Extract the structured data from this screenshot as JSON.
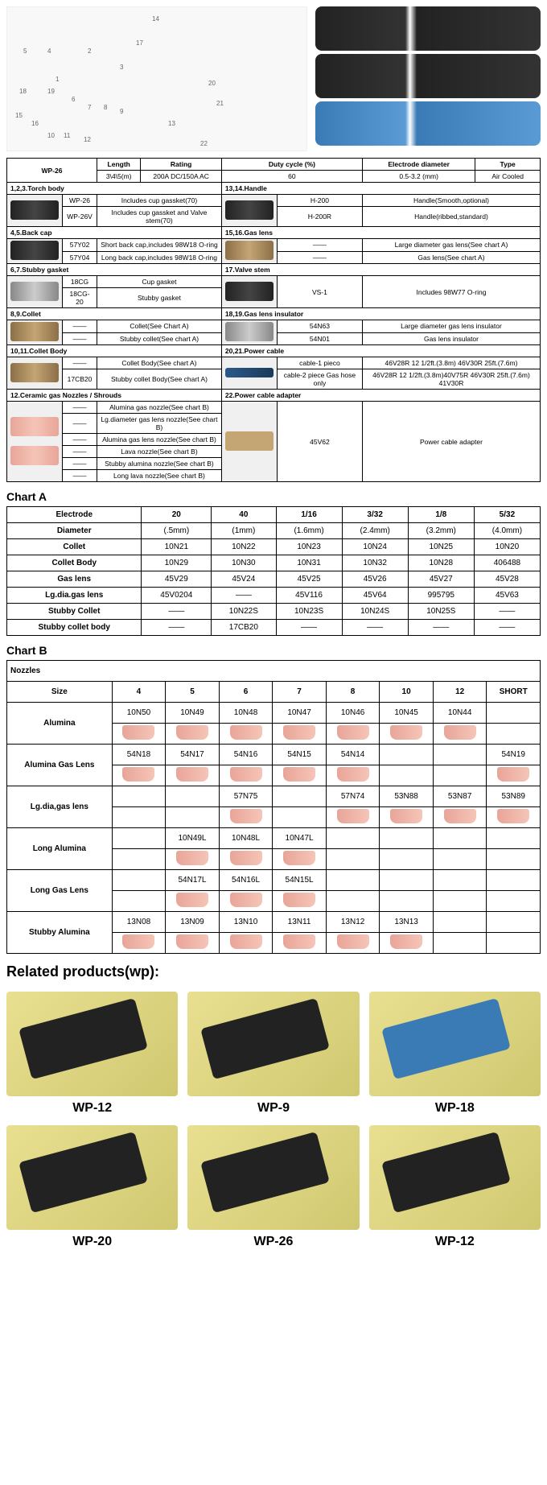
{
  "mainSpec": {
    "headerRow1": [
      "WP-26",
      "Length",
      "Rating",
      "Duty cycle (%)",
      "Electrode diameter",
      "Type"
    ],
    "headerRow2": [
      "3\\4\\5(m)",
      "200A DC/150A AC",
      "60",
      "0.5-3.2 (mm)",
      "Air Cooled"
    ],
    "sections": {
      "torchBody": {
        "title": "1,2,3.Torch body",
        "rows": [
          {
            "code": "WP-26",
            "desc": "Includes cup gassket(70)"
          },
          {
            "code": "WP-26V",
            "desc": "Includes cup gassket and Valve stem(70)"
          }
        ]
      },
      "handle": {
        "title": "13,14.Handle",
        "rows": [
          {
            "code": "H-200",
            "desc": "Handle(Smooth,optional)"
          },
          {
            "code": "H-200R",
            "desc": "Handle(ribbed,standard)"
          }
        ]
      },
      "backCap": {
        "title": "4,5.Back cap",
        "rows": [
          {
            "code": "57Y02",
            "desc": "Short back cap,includes 98W18 O-ring"
          },
          {
            "code": "57Y04",
            "desc": "Long back cap,includes 98W18 O-ring"
          }
        ]
      },
      "gasLens": {
        "title": "15,16.Gas lens",
        "rows": [
          {
            "code": "——",
            "desc": "Large diameter gas lens(See chart A)"
          },
          {
            "code": "——",
            "desc": "Gas lens(See chart A)"
          }
        ]
      },
      "stubbyGasket": {
        "title": "6,7.Stubby gasket",
        "rows": [
          {
            "code": "18CG",
            "desc": "Cup gasket"
          },
          {
            "code": "18CG-20",
            "desc": "Stubby gasket"
          }
        ]
      },
      "valveStem": {
        "title": "17.Valve stem",
        "rows": [
          {
            "code": "VS-1",
            "desc": "Includes 98W77 O-ring"
          }
        ]
      },
      "collet": {
        "title": "8,9.Collet",
        "rows": [
          {
            "code": "——",
            "desc": "Collet(See Chart A)"
          },
          {
            "code": "——",
            "desc": "Stubby collet(See chart A)"
          }
        ]
      },
      "gasLensInsulator": {
        "title": "18,19.Gas lens insulator",
        "rows": [
          {
            "code": "54N63",
            "desc": "Large diameter gas lens insulator"
          },
          {
            "code": "54N01",
            "desc": "Gas lens insulator"
          }
        ]
      },
      "colletBody": {
        "title": "10,11.Collet Body",
        "rows": [
          {
            "code": "——",
            "desc": "Collet Body(See chart A)"
          },
          {
            "code": "17CB20",
            "desc": "Stubby collet Body(See chart A)"
          }
        ]
      },
      "powerCable": {
        "title": "20,21.Power cable",
        "rows": [
          {
            "code": "cable-1 pieco",
            "desc": "46V28R 12 1/2ft.(3.8m) 46V30R 25ft.(7.6m)"
          },
          {
            "code": "cable-2 piece Gas hose only",
            "desc": "46V28R 12 1/2ft.(3.8m)40V75R 46V30R 25ft.(7.6m) 41V30R"
          }
        ]
      },
      "ceramicNozzles": {
        "title": "12.Ceramic gas Nozzles / Shrouds",
        "rows": [
          {
            "code": "——",
            "desc": "Alumina gas nozzle(See chart B)"
          },
          {
            "code": "——",
            "desc": "Lg.diameter gas lens nozzle(See chart B)"
          },
          {
            "code": "——",
            "desc": "Alumina gas lens nozzle(See chart B)"
          },
          {
            "code": "——",
            "desc": "Lava nozzle(See chart B)"
          },
          {
            "code": "——",
            "desc": "Stubby alumina nozzle(See chart B)"
          },
          {
            "code": "——",
            "desc": "Long lava nozzle(See chart B)"
          }
        ]
      },
      "powerCableAdapter": {
        "title": "22.Power cable adapter",
        "rows": [
          {
            "code": "45V62",
            "desc": "Power cable adapter"
          }
        ]
      }
    }
  },
  "chartA": {
    "title": "Chart A",
    "headers": [
      "Electrode",
      "20",
      "40",
      "1/16",
      "3/32",
      "1/8",
      "5/32"
    ],
    "rows": [
      [
        "Diameter",
        "(.5mm)",
        "(1mm)",
        "(1.6mm)",
        "(2.4mm)",
        "(3.2mm)",
        "(4.0mm)"
      ],
      [
        "Collet",
        "10N21",
        "10N22",
        "10N23",
        "10N24",
        "10N25",
        "10N20"
      ],
      [
        "Collet Body",
        "10N29",
        "10N30",
        "10N31",
        "10N32",
        "10N28",
        "406488"
      ],
      [
        "Gas lens",
        "45V29",
        "45V24",
        "45V25",
        "45V26",
        "45V27",
        "45V28"
      ],
      [
        "Lg.dia.gas lens",
        "45V0204",
        "——",
        "45V116",
        "45V64",
        "995795",
        "45V63"
      ],
      [
        "Stubby Collet",
        "——",
        "10N22S",
        "10N23S",
        "10N24S",
        "10N25S",
        "——"
      ],
      [
        "Stubby collet body",
        "——",
        "17CB20",
        "——",
        "——",
        "——",
        "——"
      ]
    ]
  },
  "chartB": {
    "title": "Chart B",
    "nozzlesLabel": "Nozzles",
    "sizeLabel": "Size",
    "sizes": [
      "4",
      "5",
      "6",
      "7",
      "8",
      "10",
      "12",
      "SHORT"
    ],
    "groups": [
      {
        "name": "Alumina",
        "rows": [
          [
            "10N50",
            "10N49",
            "10N48",
            "10N47",
            "10N46",
            "10N45",
            "10N44",
            ""
          ],
          [
            "img",
            "img",
            "img",
            "img",
            "img",
            "img",
            "img",
            ""
          ]
        ]
      },
      {
        "name": "Alumina Gas Lens",
        "rows": [
          [
            "54N18",
            "54N17",
            "54N16",
            "54N15",
            "54N14",
            "",
            "",
            "54N19"
          ],
          [
            "img",
            "img",
            "img",
            "img",
            "img",
            "",
            "",
            "img"
          ]
        ]
      },
      {
        "name": "Lg.dia,gas lens",
        "rows": [
          [
            "",
            "",
            "57N75",
            "",
            "57N74",
            "53N88",
            "53N87",
            "53N89"
          ],
          [
            "",
            "",
            "img",
            "",
            "img",
            "img",
            "img",
            "img"
          ]
        ]
      },
      {
        "name": "Long Alumina",
        "rows": [
          [
            "",
            "10N49L",
            "10N48L",
            "10N47L",
            "",
            "",
            "",
            ""
          ],
          [
            "",
            "img",
            "img",
            "img",
            "",
            "",
            "",
            ""
          ]
        ]
      },
      {
        "name": "Long Gas Lens",
        "rows": [
          [
            "",
            "54N17L",
            "54N16L",
            "54N15L",
            "",
            "",
            "",
            ""
          ],
          [
            "",
            "img",
            "img",
            "img",
            "",
            "",
            "",
            ""
          ]
        ]
      },
      {
        "name": "Stubby Alumina",
        "rows": [
          [
            "13N08",
            "13N09",
            "13N10",
            "13N11",
            "13N12",
            "13N13",
            "",
            ""
          ],
          [
            "img",
            "img",
            "img",
            "img",
            "img",
            "img",
            "",
            ""
          ]
        ]
      }
    ]
  },
  "related": {
    "title": "Related products(wp):",
    "items": [
      {
        "label": "WP-12",
        "variant": "dark"
      },
      {
        "label": "WP-9",
        "variant": "dark"
      },
      {
        "label": "WP-18",
        "variant": "blue"
      },
      {
        "label": "WP-20",
        "variant": "dark"
      },
      {
        "label": "WP-26",
        "variant": "dark"
      },
      {
        "label": "WP-12",
        "variant": "dark"
      }
    ]
  }
}
